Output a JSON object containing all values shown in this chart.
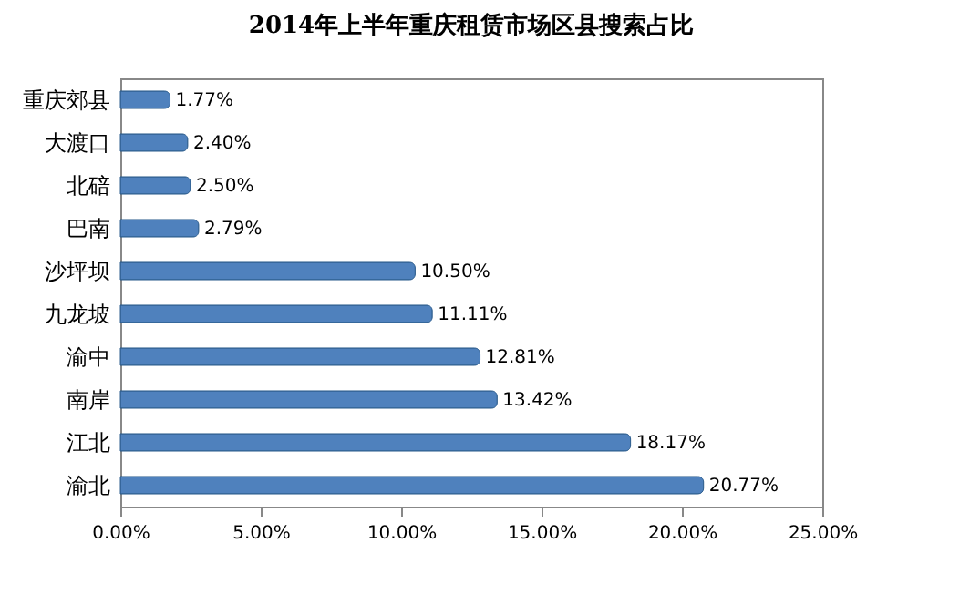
{
  "chart_data": {
    "type": "bar",
    "orientation": "horizontal",
    "title": "2014年上半年重庆租赁市场区县搜索占比",
    "categories": [
      "重庆郊县",
      "大渡口",
      "北碚",
      "巴南",
      "沙坪坝",
      "九龙坡",
      "渝中",
      "南岸",
      "江北",
      "渝北"
    ],
    "values": [
      1.77,
      2.4,
      2.5,
      2.79,
      10.5,
      11.11,
      12.81,
      13.42,
      18.17,
      20.77
    ],
    "value_labels": [
      "1.77%",
      "2.40%",
      "2.50%",
      "2.79%",
      "10.50%",
      "11.11%",
      "12.81%",
      "13.42%",
      "18.17%",
      "20.77%"
    ],
    "color": "#4f81bd",
    "xlim": [
      0,
      25
    ],
    "xticks": [
      {
        "value": 0,
        "label": "0.00%"
      },
      {
        "value": 5,
        "label": "5.00%"
      },
      {
        "value": 10,
        "label": "10.00%"
      },
      {
        "value": 15,
        "label": "15.00%"
      },
      {
        "value": 20,
        "label": "20.00%"
      },
      {
        "value": 25,
        "label": "25.00%"
      }
    ],
    "grid": false
  }
}
